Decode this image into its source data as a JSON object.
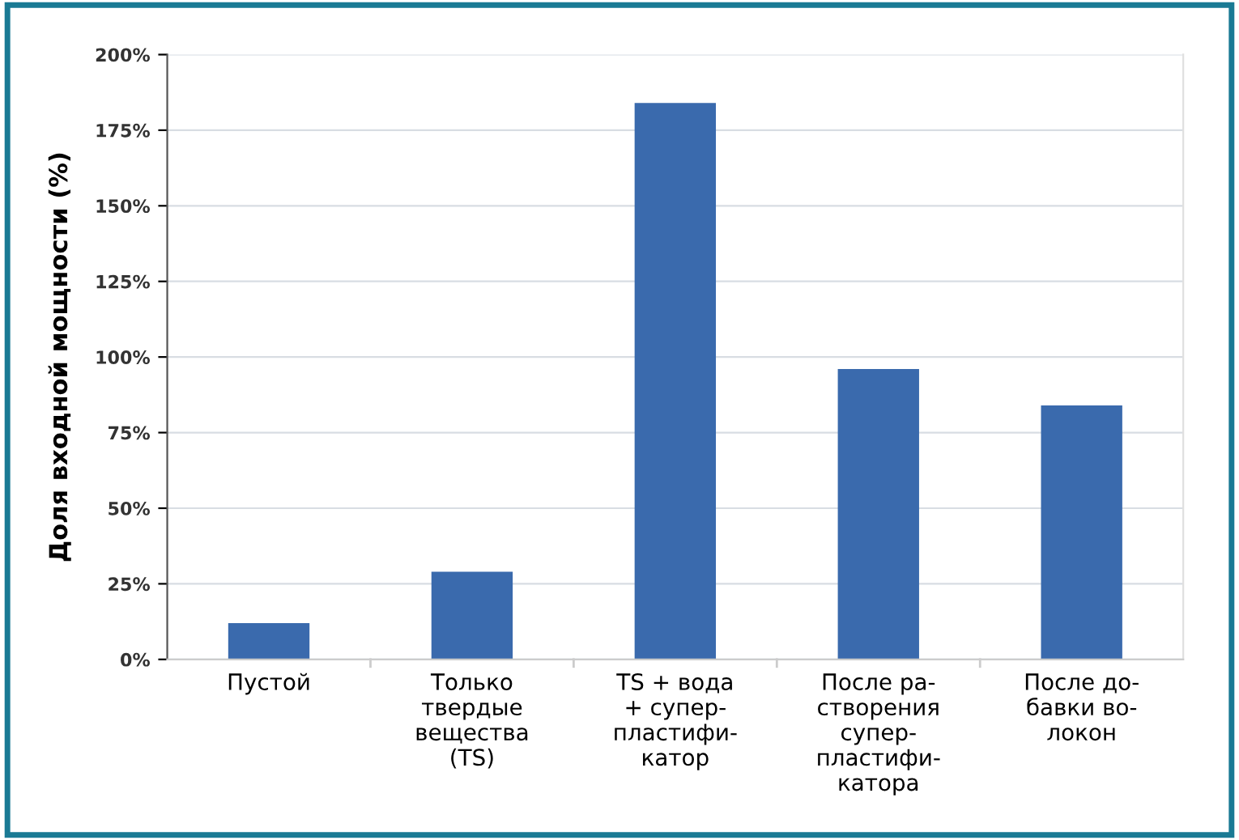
{
  "chart_data": {
    "type": "bar",
    "ylabel": "Доля входной мощности (%)",
    "categories": [
      "Пустой",
      "Только\nтвердые\nвещества\n(TS)",
      "TS + вода\n+ супер-\nпластифи-\nкатор",
      "После ра-\nстворения\nсупер-\nпластифи-\nкатора",
      "После до-\nбавки во-\nлокон"
    ],
    "values": [
      12,
      29,
      184,
      96,
      84
    ],
    "color": "#3a6aad",
    "ylim": [
      0,
      200
    ],
    "yticks": [
      {
        "value": 0,
        "label": "0%"
      },
      {
        "value": 25,
        "label": "25%"
      },
      {
        "value": 50,
        "label": "50%"
      },
      {
        "value": 75,
        "label": "75%"
      },
      {
        "value": 100,
        "label": "100%"
      },
      {
        "value": 125,
        "label": "125%"
      },
      {
        "value": 150,
        "label": "150%"
      },
      {
        "value": 175,
        "label": "175%"
      },
      {
        "value": 200,
        "label": "200%"
      }
    ],
    "grid": "y"
  }
}
